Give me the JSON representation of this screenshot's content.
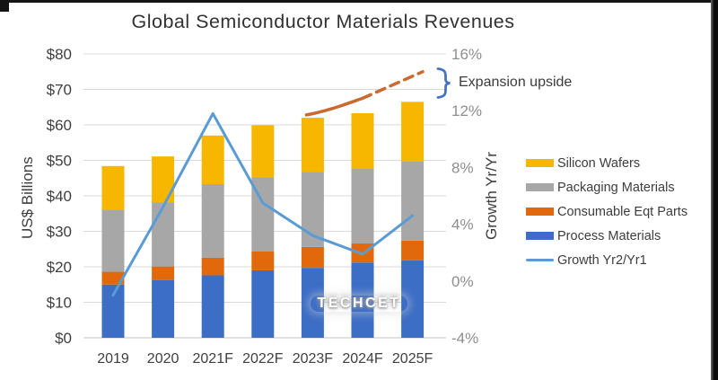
{
  "watermark": "TECHCET",
  "annotations": {
    "expansion_label": "Expansion upside"
  },
  "chart_data": {
    "type": "bar",
    "subtype": "stacked-bar-with-line-overlay",
    "title": "Global Semiconductor Materials Revenues",
    "ylabel_left": "US$ Billions",
    "ylabel_right": "Growth Yr/Yr",
    "categories": [
      "2019",
      "2020",
      "2021F",
      "2022F",
      "2023F",
      "2024F",
      "2025F"
    ],
    "series": [
      {
        "name": "Process Materials",
        "color": "#3D6EC6",
        "values": [
          15.0,
          16.3,
          17.6,
          19.0,
          19.7,
          21.2,
          21.8
        ]
      },
      {
        "name": "Consumable Eqt Parts",
        "color": "#E2690B",
        "values": [
          3.6,
          3.8,
          5.0,
          5.3,
          5.9,
          5.4,
          5.6
        ]
      },
      {
        "name": "Packaging Materials",
        "color": "#A7A7A7",
        "values": [
          17.5,
          18.1,
          20.7,
          20.9,
          21.2,
          21.1,
          22.4
        ]
      },
      {
        "name": "Silicon Wafers",
        "color": "#F7B600",
        "values": [
          12.3,
          12.9,
          13.7,
          14.7,
          15.2,
          15.6,
          16.7
        ]
      }
    ],
    "totals_usd_billions": [
      48.5,
      51,
      57,
      60,
      62,
      63.3,
      66.5
    ],
    "line_series": {
      "name": "Growth Yr2/Yr1",
      "unit": "%",
      "color": "#5B9BD5",
      "values": [
        -1.0,
        5.2,
        11.8,
        5.5,
        3.2,
        1.9,
        4.6
      ]
    },
    "upside_series": {
      "name": "Expansion upside",
      "unit": "US$ Billions",
      "color": "#C96A31",
      "categories": [
        "2023F",
        "2024F",
        "2025F"
      ],
      "values": [
        63,
        67.5,
        75
      ],
      "style": "solid to 2024F, dashed to 2025F"
    },
    "left_axis": {
      "min": 0,
      "max": 80,
      "ticks": [
        "$0",
        "$10",
        "$20",
        "$30",
        "$40",
        "$50",
        "$60",
        "$70",
        "$80"
      ]
    },
    "right_axis": {
      "min": -4,
      "max": 16,
      "step": 4,
      "ticks": [
        "-4%",
        "0%",
        "4%",
        "8%",
        "12%",
        "16%"
      ]
    },
    "grid": "horizontal gridlines every $10",
    "legend": {
      "position": "right",
      "items": [
        {
          "label": "Silicon Wafers",
          "color": "#F7B600",
          "type": "box"
        },
        {
          "label": "Packaging Materials",
          "color": "#A7A7A7",
          "type": "box"
        },
        {
          "label": "Consumable Eqt Parts",
          "color": "#E2690B",
          "type": "box"
        },
        {
          "label": "Process Materials",
          "color": "#3D6EC6",
          "type": "box"
        },
        {
          "label": "Growth Yr2/Yr1",
          "color": "#5B9BD5",
          "type": "line"
        }
      ]
    },
    "bracket_color": "#4472C4"
  }
}
